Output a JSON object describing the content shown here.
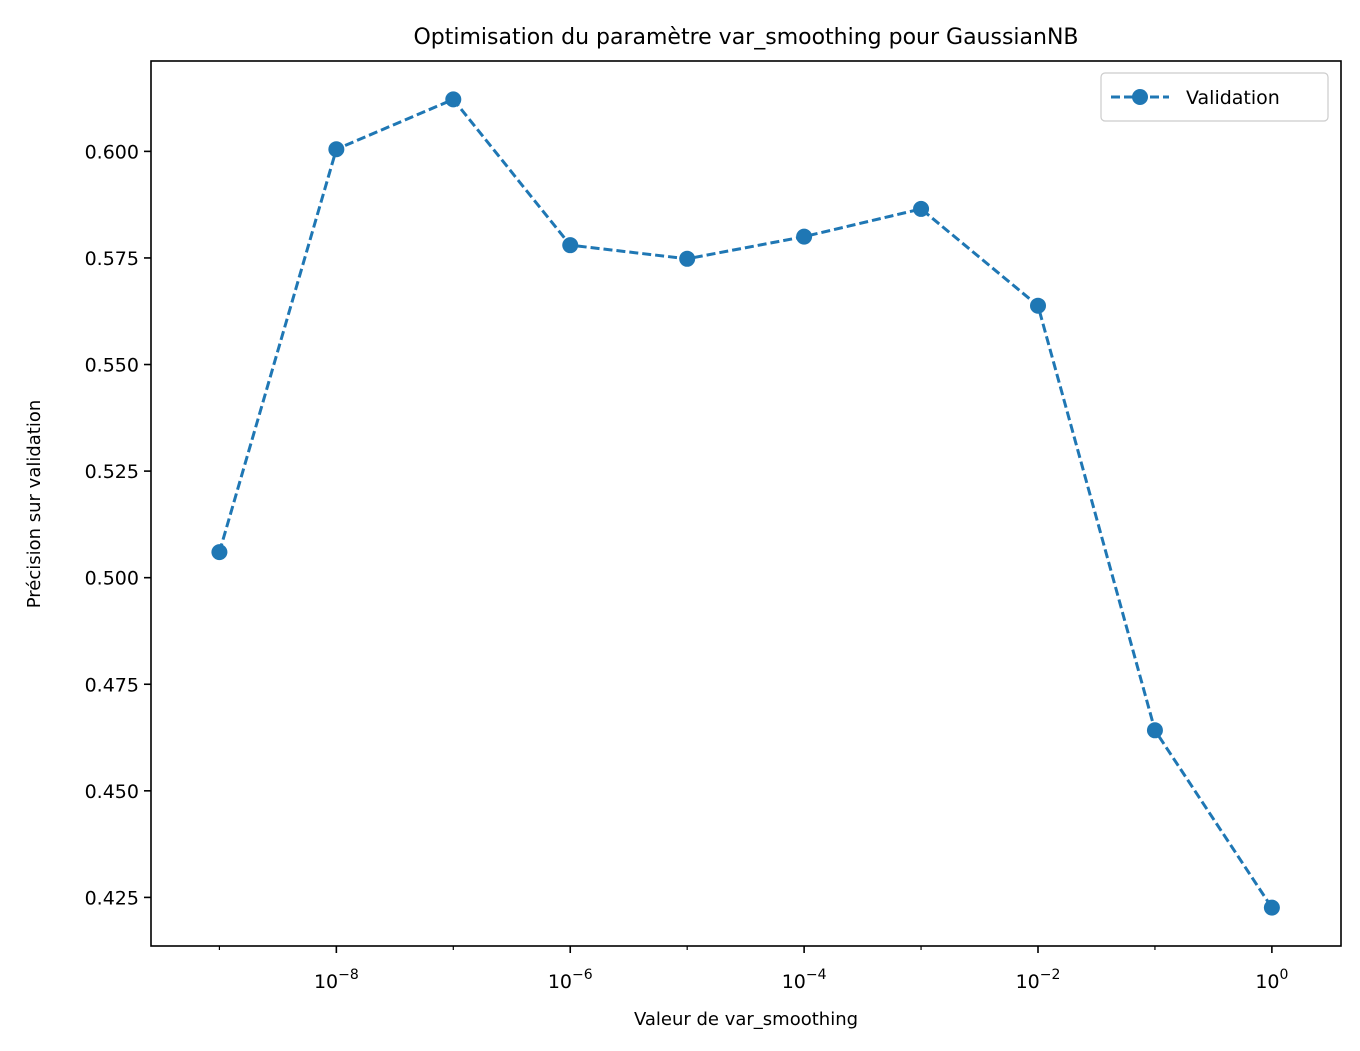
{
  "chart_data": {
    "type": "line",
    "title": "Optimisation du paramètre var_smoothing pour GaussianNB",
    "xlabel": "Valeur de var_smoothing",
    "ylabel": "Précision sur validation",
    "x_scale": "log",
    "x": [
      1e-09,
      1e-08,
      1e-07,
      1e-06,
      1e-05,
      0.0001,
      0.001,
      0.01,
      0.1,
      1
    ],
    "series": [
      {
        "name": "Validation",
        "values": [
          0.506,
          0.6005,
          0.6122,
          0.578,
          0.5748,
          0.58,
          0.5865,
          0.5638,
          0.4642,
          0.4226
        ],
        "color": "#1f77b4",
        "line_style": "dashed",
        "marker": "circle"
      }
    ],
    "xlim": [
      2.6e-10,
      3.9
    ],
    "ylim": [
      0.4136,
      0.6212
    ],
    "x_ticks": [
      {
        "base": "10",
        "exp": "−8",
        "value": 1e-08
      },
      {
        "base": "10",
        "exp": "−6",
        "value": 1e-06
      },
      {
        "base": "10",
        "exp": "−4",
        "value": 0.0001
      },
      {
        "base": "10",
        "exp": "−2",
        "value": 0.01
      },
      {
        "base": "10",
        "exp": "0",
        "value": 1
      }
    ],
    "y_ticks": [
      {
        "label": "0.425",
        "value": 0.425
      },
      {
        "label": "0.450",
        "value": 0.45
      },
      {
        "label": "0.475",
        "value": 0.475
      },
      {
        "label": "0.500",
        "value": 0.5
      },
      {
        "label": "0.525",
        "value": 0.525
      },
      {
        "label": "0.550",
        "value": 0.55
      },
      {
        "label": "0.575",
        "value": 0.575
      },
      {
        "label": "0.600",
        "value": 0.6
      }
    ],
    "grid": false,
    "legend_position": "top-right"
  }
}
